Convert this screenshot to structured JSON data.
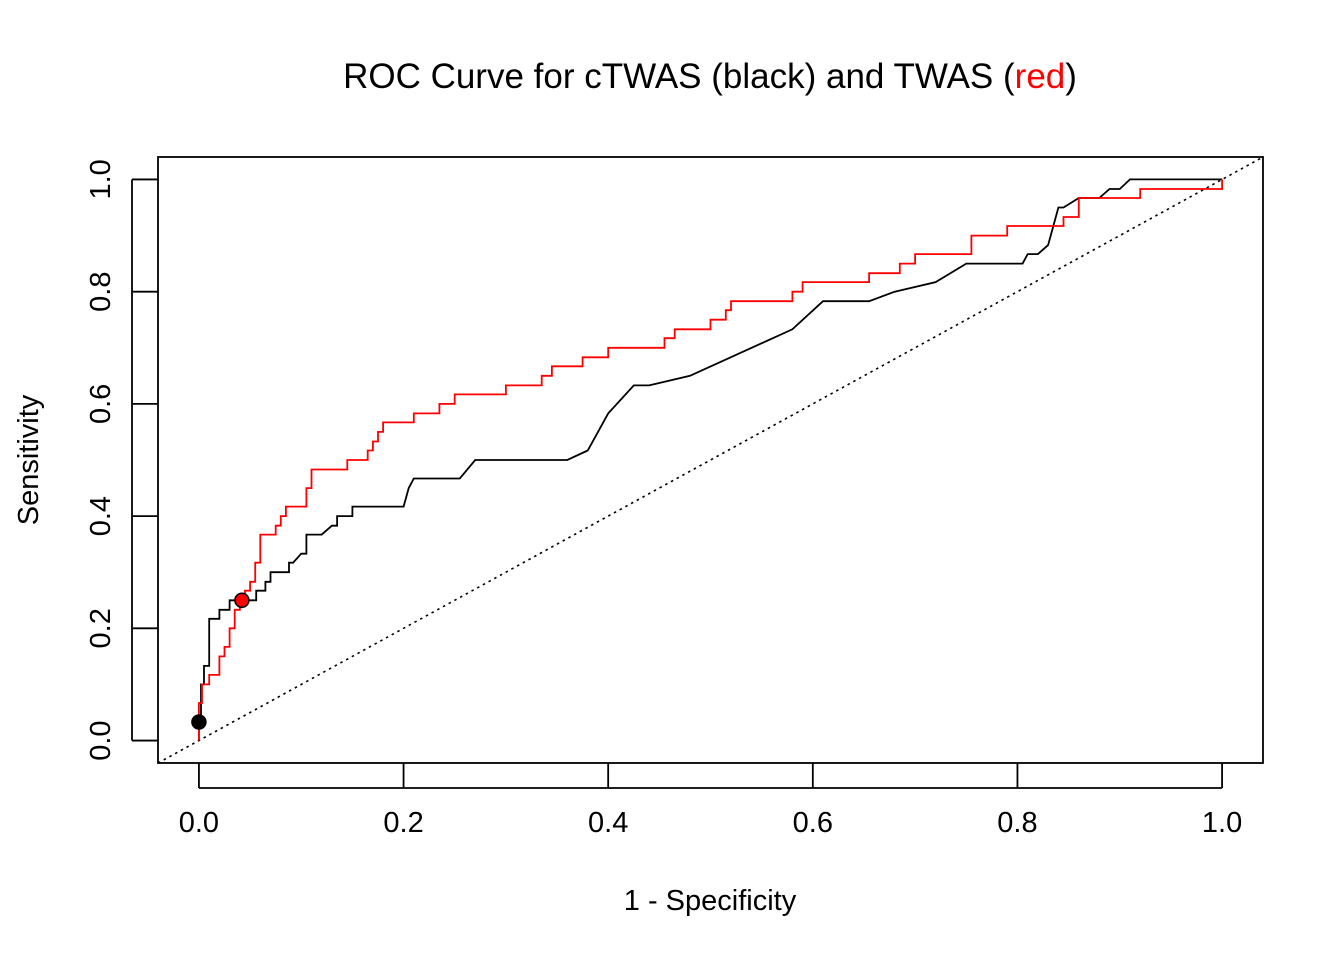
{
  "chart_data": {
    "type": "line",
    "title": {
      "prefix": "ROC Curve for cTWAS (black) and TWAS (",
      "highlight": "red",
      "suffix": ")"
    },
    "xlabel": "1 - Specificity",
    "ylabel": "Sensitivity",
    "xlim": [
      -0.04,
      1.04
    ],
    "ylim": [
      -0.04,
      1.04
    ],
    "xticks": [
      0.0,
      0.2,
      0.4,
      0.6,
      0.8,
      1.0
    ],
    "yticks": [
      0.0,
      0.2,
      0.4,
      0.6,
      0.8,
      1.0
    ],
    "xtick_labels": [
      "0.0",
      "0.2",
      "0.4",
      "0.6",
      "0.8",
      "1.0"
    ],
    "ytick_labels": [
      "0.0",
      "0.2",
      "0.4",
      "0.6",
      "0.8",
      "1.0"
    ],
    "diagonal": {
      "x": [
        -0.04,
        1.04
      ],
      "y": [
        -0.04,
        1.04
      ],
      "style": "dotted"
    },
    "colors": {
      "ctwas": "#000000",
      "twas": "#ff0000"
    },
    "series": [
      {
        "name": "cTWAS",
        "color": "#000000",
        "x": [
          0.0,
          0.0,
          0.002,
          0.002,
          0.005,
          0.005,
          0.01,
          0.01,
          0.02,
          0.02,
          0.03,
          0.03,
          0.035,
          0.035,
          0.04,
          0.04,
          0.045,
          0.045,
          0.056,
          0.056,
          0.06,
          0.06,
          0.065,
          0.065,
          0.07,
          0.07,
          0.08,
          0.088,
          0.088,
          0.092,
          0.092,
          0.1,
          0.1,
          0.105,
          0.105,
          0.12,
          0.13,
          0.13,
          0.135,
          0.135,
          0.145,
          0.15,
          0.15,
          0.2,
          0.205,
          0.21,
          0.255,
          0.27,
          0.36,
          0.38,
          0.39,
          0.4,
          0.425,
          0.44,
          0.48,
          0.58,
          0.61,
          0.62,
          0.655,
          0.68,
          0.72,
          0.75,
          0.805,
          0.81,
          0.82,
          0.83,
          0.84,
          0.845,
          0.86,
          0.88,
          0.89,
          0.9,
          0.91,
          0.93,
          1.0
        ],
        "y": [
          0.0,
          0.033,
          0.033,
          0.1,
          0.1,
          0.133,
          0.133,
          0.217,
          0.217,
          0.233,
          0.233,
          0.25,
          0.25,
          0.25,
          0.25,
          0.25,
          0.25,
          0.25,
          0.25,
          0.267,
          0.267,
          0.267,
          0.267,
          0.283,
          0.283,
          0.3,
          0.3,
          0.3,
          0.317,
          0.317,
          0.317,
          0.333,
          0.333,
          0.333,
          0.367,
          0.367,
          0.383,
          0.383,
          0.383,
          0.4,
          0.4,
          0.4,
          0.417,
          0.417,
          0.45,
          0.467,
          0.467,
          0.5,
          0.5,
          0.517,
          0.55,
          0.583,
          0.633,
          0.633,
          0.65,
          0.733,
          0.783,
          0.783,
          0.783,
          0.8,
          0.817,
          0.85,
          0.85,
          0.867,
          0.867,
          0.883,
          0.95,
          0.95,
          0.967,
          0.967,
          0.983,
          0.983,
          1.0,
          1.0,
          1.0
        ]
      },
      {
        "name": "TWAS",
        "color": "#ff0000",
        "x": [
          0.0,
          0.0,
          0.003,
          0.003,
          0.01,
          0.01,
          0.02,
          0.02,
          0.025,
          0.025,
          0.03,
          0.03,
          0.035,
          0.035,
          0.04,
          0.04,
          0.045,
          0.045,
          0.05,
          0.05,
          0.055,
          0.055,
          0.06,
          0.06,
          0.075,
          0.075,
          0.08,
          0.08,
          0.085,
          0.085,
          0.105,
          0.105,
          0.11,
          0.11,
          0.145,
          0.145,
          0.165,
          0.165,
          0.17,
          0.17,
          0.175,
          0.175,
          0.18,
          0.18,
          0.21,
          0.21,
          0.235,
          0.235,
          0.25,
          0.25,
          0.3,
          0.3,
          0.335,
          0.335,
          0.345,
          0.345,
          0.375,
          0.375,
          0.4,
          0.4,
          0.455,
          0.455,
          0.465,
          0.465,
          0.5,
          0.5,
          0.515,
          0.515,
          0.52,
          0.52,
          0.58,
          0.58,
          0.59,
          0.59,
          0.655,
          0.655,
          0.685,
          0.685,
          0.7,
          0.7,
          0.755,
          0.755,
          0.79,
          0.79,
          0.845,
          0.845,
          0.86,
          0.86,
          0.895,
          0.895,
          0.92,
          0.92,
          0.98,
          0.98,
          1.0,
          1.0
        ],
        "y": [
          0.0,
          0.067,
          0.067,
          0.1,
          0.1,
          0.117,
          0.117,
          0.15,
          0.15,
          0.167,
          0.167,
          0.2,
          0.2,
          0.233,
          0.233,
          0.25,
          0.25,
          0.267,
          0.267,
          0.283,
          0.283,
          0.317,
          0.317,
          0.367,
          0.367,
          0.383,
          0.383,
          0.4,
          0.4,
          0.417,
          0.417,
          0.45,
          0.45,
          0.483,
          0.483,
          0.5,
          0.5,
          0.517,
          0.517,
          0.533,
          0.533,
          0.55,
          0.55,
          0.567,
          0.567,
          0.583,
          0.583,
          0.6,
          0.6,
          0.617,
          0.617,
          0.633,
          0.633,
          0.65,
          0.65,
          0.667,
          0.667,
          0.683,
          0.683,
          0.7,
          0.7,
          0.717,
          0.717,
          0.733,
          0.733,
          0.75,
          0.75,
          0.767,
          0.767,
          0.783,
          0.783,
          0.8,
          0.8,
          0.817,
          0.817,
          0.833,
          0.833,
          0.85,
          0.85,
          0.867,
          0.867,
          0.9,
          0.9,
          0.917,
          0.917,
          0.933,
          0.933,
          0.967,
          0.967,
          0.967,
          0.967,
          0.983,
          0.983,
          0.983,
          0.983,
          1.0
        ]
      }
    ],
    "points": [
      {
        "series": "cTWAS",
        "x": 0.0,
        "y": 0.033,
        "fill": "#000000"
      },
      {
        "series": "TWAS",
        "x": 0.042,
        "y": 0.25,
        "fill": "#ff0000"
      }
    ]
  }
}
